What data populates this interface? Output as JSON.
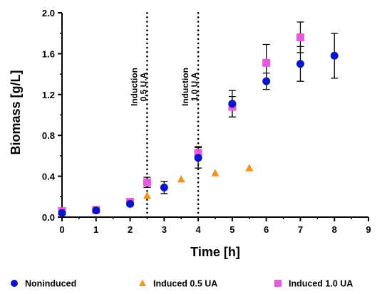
{
  "chart_data": {
    "type": "scatter",
    "xlabel": "Time [h]",
    "ylabel": "Biomass [g/L]",
    "xlim": [
      0,
      9
    ],
    "ylim": [
      0,
      2.0
    ],
    "x_ticks": [
      "0",
      "1",
      "2",
      "3",
      "4",
      "5",
      "6",
      "7",
      "8",
      "9"
    ],
    "y_ticks": [
      "0.0",
      "0.4",
      "0.8",
      "1.2",
      "1.6",
      "2.0"
    ],
    "grid": false,
    "legend_position": "bottom",
    "series": [
      {
        "name": "Noninduced",
        "marker": "circle",
        "color": "#0a14c8",
        "points": [
          {
            "x": 0,
            "y": 0.04,
            "err": 0.02
          },
          {
            "x": 1,
            "y": 0.065,
            "err": 0.015
          },
          {
            "x": 2,
            "y": 0.13,
            "err": 0.02
          },
          {
            "x": 3,
            "y": 0.29,
            "err": 0.06
          },
          {
            "x": 4,
            "y": 0.58,
            "err": 0.1
          },
          {
            "x": 5,
            "y": 1.11,
            "err": 0.13
          },
          {
            "x": 6,
            "y": 1.33,
            "err": 0.08
          },
          {
            "x": 7,
            "y": 1.5,
            "err": 0.17
          },
          {
            "x": 8,
            "y": 1.58,
            "err": 0.22
          }
        ]
      },
      {
        "name": "Induced 0.5 UA",
        "marker": "triangle",
        "color": "#f0961e",
        "points": [
          {
            "x": 2.5,
            "y": 0.21
          },
          {
            "x": 3.5,
            "y": 0.37
          },
          {
            "x": 4.5,
            "y": 0.43
          },
          {
            "x": 5.5,
            "y": 0.48
          }
        ]
      },
      {
        "name": "Induced 1.0 UA",
        "marker": "square",
        "color": "#e65adc",
        "points": [
          {
            "x": 0,
            "y": 0.06,
            "err": 0.02
          },
          {
            "x": 1,
            "y": 0.07,
            "err": 0.015
          },
          {
            "x": 2,
            "y": 0.15,
            "err": 0.02
          },
          {
            "x": 2.5,
            "y": 0.34,
            "err": 0.05
          },
          {
            "x": 4,
            "y": 0.63,
            "err": 0.06
          },
          {
            "x": 5,
            "y": 1.08,
            "err": 0.1
          },
          {
            "x": 6,
            "y": 1.51,
            "err": 0.18
          },
          {
            "x": 7,
            "y": 1.76,
            "err": 0.15
          }
        ]
      }
    ],
    "annotations": [
      {
        "x": 2.5,
        "lines": [
          "Induction",
          "0.5 U.A"
        ]
      },
      {
        "x": 4,
        "lines": [
          "Induction",
          "1.0 U.A"
        ]
      }
    ]
  }
}
